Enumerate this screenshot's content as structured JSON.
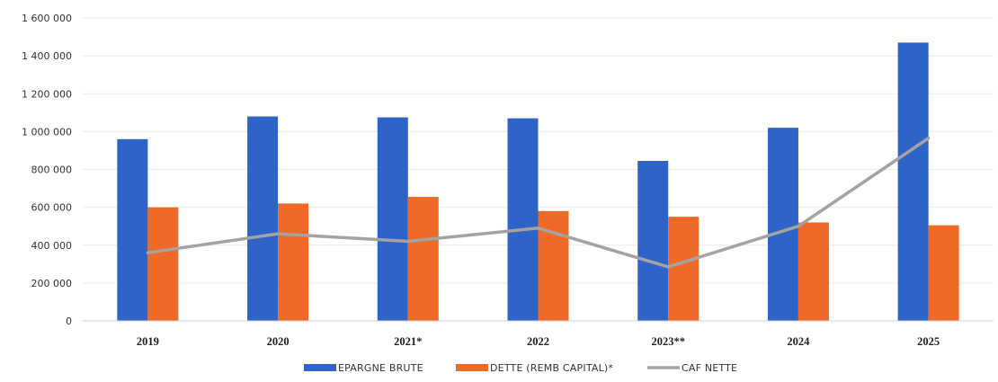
{
  "chart_data": {
    "type": "bar",
    "title": "",
    "xlabel": "",
    "ylabel": "",
    "categories": [
      "2019",
      "2020",
      "2021*",
      "2022",
      "2023**",
      "2024",
      "2025"
    ],
    "y_ticks": [
      "0",
      "200 000",
      "400 000",
      "600 000",
      "800 000",
      "1 000 000",
      "1 200 000",
      "1 400 000",
      "1 600 000"
    ],
    "ylim": [
      0,
      1600000
    ],
    "grid": true,
    "legend_position": "bottom",
    "series": [
      {
        "name": "EPARGNE BRUTE",
        "type": "bar",
        "color": "#2e63c8",
        "values": [
          960000,
          1080000,
          1075000,
          1070000,
          845000,
          1020000,
          1470000
        ]
      },
      {
        "name": "DETTE (REMB CAPITAL)*",
        "type": "bar",
        "color": "#ee6a26",
        "values": [
          600000,
          620000,
          655000,
          580000,
          550000,
          520000,
          505000
        ]
      },
      {
        "name": "CAF NETTE",
        "type": "line",
        "color": "#a3a3a3",
        "values": [
          360000,
          460000,
          420000,
          490000,
          285000,
          500000,
          965000
        ]
      }
    ]
  }
}
